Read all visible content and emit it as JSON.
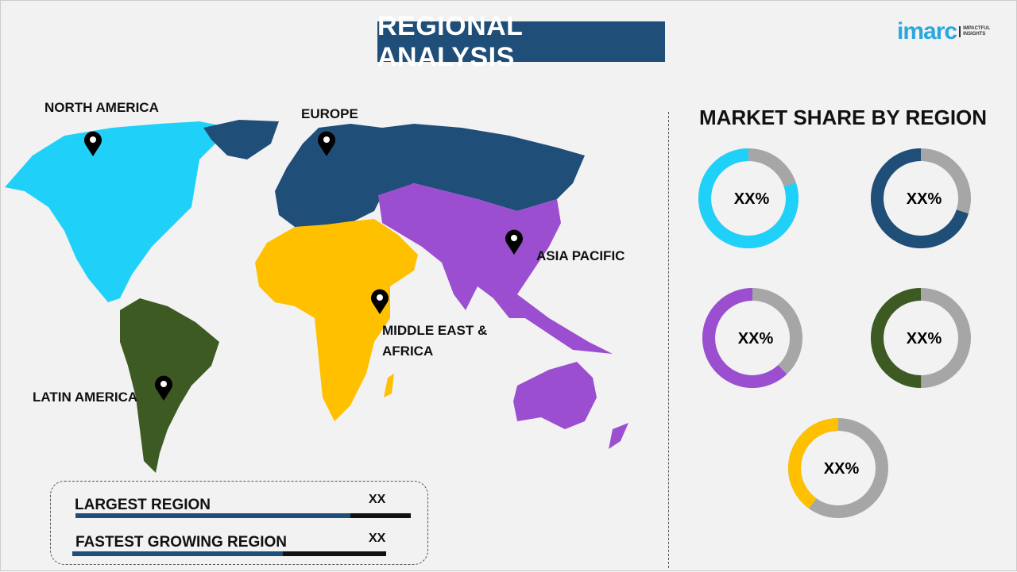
{
  "header": {
    "title": "REGIONAL ANALYSIS",
    "logo_text": "imarc",
    "logo_tagline": "IMPACTFUL INSIGHTS"
  },
  "map": {
    "regions": [
      {
        "name": "NORTH AMERICA",
        "color": "#1fd1f9"
      },
      {
        "name": "EUROPE",
        "color": "#1f4e79"
      },
      {
        "name": "ASIA PACIFIC",
        "color": "#9b4fd0"
      },
      {
        "name": "MIDDLE EAST & AFRICA",
        "color": "#ffc000"
      },
      {
        "name": "LATIN AMERICA",
        "color": "#3d5a22"
      }
    ],
    "pin_icon": "map-pin-icon"
  },
  "summary": {
    "largest_label": "LARGEST REGION",
    "largest_value": "XX",
    "largest_fill": 0.82,
    "fastest_label": "FASTEST GROWING REGION",
    "fastest_value": "XX",
    "fastest_fill": 0.67
  },
  "chart_data": {
    "type": "pie",
    "title": "MARKET SHARE BY REGION",
    "style": "donut",
    "remainder_color": "#a6a6a6",
    "series": [
      {
        "region": "NORTH AMERICA",
        "label": "XX%",
        "fraction": 0.8,
        "color": "#1fd1f9"
      },
      {
        "region": "EUROPE",
        "label": "XX%",
        "fraction": 0.7,
        "color": "#1f4e79"
      },
      {
        "region": "ASIA PACIFIC",
        "label": "XX%",
        "fraction": 0.62,
        "color": "#9b4fd0"
      },
      {
        "region": "LATIN AMERICA",
        "label": "XX%",
        "fraction": 0.5,
        "color": "#3d5a22"
      },
      {
        "region": "MIDDLE EAST & AFRICA",
        "label": "XX%",
        "fraction": 0.4,
        "color": "#ffc000"
      }
    ]
  }
}
